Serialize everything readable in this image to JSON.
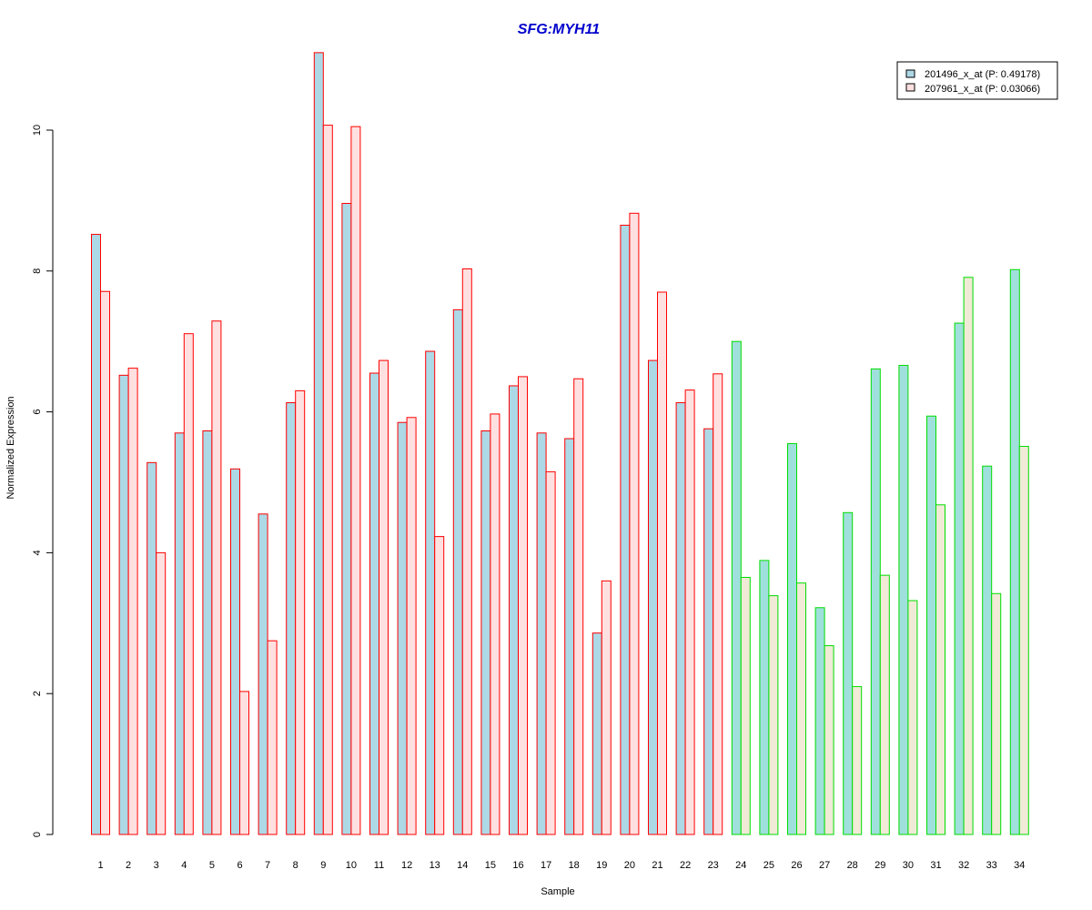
{
  "chart_data": {
    "type": "bar",
    "title": "SFG:MYH11",
    "xlabel": "Sample",
    "ylabel": "Normalized Expression",
    "ylim": [
      0,
      11
    ],
    "yticks": [
      "0",
      "2",
      "4",
      "6",
      "8",
      "10"
    ],
    "categories": [
      "1",
      "2",
      "3",
      "4",
      "5",
      "6",
      "7",
      "8",
      "9",
      "10",
      "11",
      "12",
      "13",
      "14",
      "15",
      "16",
      "17",
      "18",
      "19",
      "20",
      "21",
      "22",
      "23",
      "24",
      "25",
      "26",
      "27",
      "28",
      "29",
      "30",
      "31",
      "32",
      "33",
      "34"
    ],
    "groups": {
      "group_a": {
        "samples": "1-23",
        "border_color": "#ff0000"
      },
      "group_b": {
        "samples": "24-34",
        "border_color": "#00dd00"
      }
    },
    "series": [
      {
        "name": "201496_x_at (P: 0.49178)",
        "fill_group_a": "#add8e6",
        "fill_group_b": "#a0e0dc",
        "values": [
          8.52,
          6.52,
          5.28,
          5.7,
          5.73,
          5.19,
          4.55,
          6.13,
          11.1,
          8.96,
          6.55,
          5.85,
          6.86,
          7.45,
          5.73,
          6.37,
          5.7,
          5.62,
          2.86,
          8.65,
          6.73,
          6.13,
          5.76,
          7.0,
          3.89,
          5.55,
          3.22,
          4.57,
          6.61,
          6.66,
          5.94,
          7.26,
          5.23,
          8.02
        ]
      },
      {
        "name": "207961_x_at (P: 0.03066)",
        "fill_group_a": "#ffe0e0",
        "fill_group_b": "#f0ead6",
        "values": [
          7.71,
          6.62,
          4.0,
          7.11,
          7.29,
          2.03,
          2.75,
          6.3,
          10.07,
          10.05,
          6.73,
          5.92,
          4.23,
          8.03,
          5.97,
          6.5,
          5.15,
          6.47,
          3.6,
          8.82,
          7.7,
          6.31,
          6.54,
          3.65,
          3.39,
          3.57,
          2.68,
          2.1,
          3.68,
          3.32,
          4.68,
          7.91,
          3.42,
          5.51
        ]
      }
    ]
  }
}
